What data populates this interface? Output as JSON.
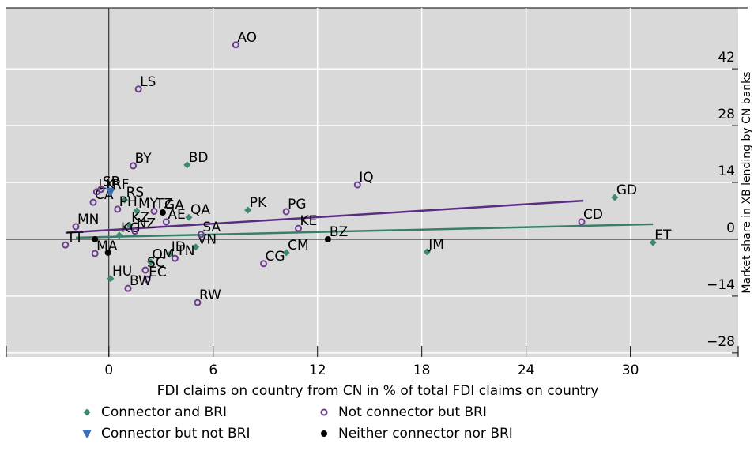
{
  "chart_data": {
    "type": "scatter",
    "xlabel": "FDI claims on country from CN in % of  total FDI claims on country",
    "ylabel": "Market share in XB lending by CN banks",
    "xlim": [
      -5.9,
      36.2
    ],
    "xticks": [
      0,
      6,
      12,
      18,
      24,
      30
    ],
    "ylim": [
      -29,
      57
    ],
    "yticks": [
      {
        "value": -28,
        "label": "−28"
      },
      {
        "value": -14,
        "label": "−14"
      },
      0,
      14,
      28,
      42
    ],
    "grid": true,
    "y_axis_side": "right",
    "legend": "bottom",
    "series": [
      {
        "name": "Connector and BRI",
        "color": "#3e8a6e",
        "marker": "diamond",
        "x": [
          4.5,
          29.1,
          8.0,
          31.3,
          18.3,
          10.2,
          4.6,
          5.0,
          3.5,
          2.4,
          0.1,
          0.9,
          1.6,
          1.2,
          0.6
        ],
        "y": [
          18.3,
          10.3,
          7.2,
          -0.8,
          -3.1,
          -3.3,
          5.4,
          -1.9,
          -3.7,
          -5.6,
          -9.7,
          9.7,
          7.0,
          3.5,
          1.0
        ],
        "labels": [
          "BD",
          "GD",
          "PK",
          "ET",
          "JM",
          "CM",
          "QA",
          "VN",
          "ID",
          "OM",
          "HU",
          "RS",
          "MY",
          "KZ",
          "KG"
        ]
      },
      {
        "name": "Not connector but BRI",
        "color": "#6a3d8f",
        "marker": "circle-open",
        "x": [
          7.3,
          1.7,
          1.4,
          14.3,
          10.2,
          27.2,
          10.9,
          8.9,
          5.1,
          3.3,
          5.3,
          3.8,
          2.1,
          2.2,
          1.1,
          -2.5,
          -1.9,
          -0.9,
          -0.7,
          -0.45,
          0.5,
          -0.8,
          1.5,
          2.6
        ],
        "y": [
          47.9,
          37.0,
          18.1,
          13.4,
          6.8,
          4.3,
          2.7,
          -6.0,
          -15.6,
          4.3,
          1.2,
          -4.7,
          -7.6,
          -9.9,
          -12.1,
          -1.4,
          3.1,
          9.1,
          11.7,
          12.3,
          7.4,
          -3.5,
          2.0,
          6.9
        ],
        "labels": [
          "AO",
          "LS",
          "BY",
          "IQ",
          "PG",
          "CD",
          "KE",
          "CG",
          "RW",
          "AE",
          "SA",
          "TN",
          "SC",
          "EC",
          "BW",
          "TT",
          "MN",
          "CA",
          "LK",
          "SR",
          "PH",
          "MA",
          "NZ",
          "TZ"
        ]
      },
      {
        "name": "Connector but not BRI",
        "color": "#3b6fb6",
        "marker": "triangle-down",
        "x": [
          0.1
        ],
        "y": [
          11.7
        ],
        "labels": [
          "RF"
        ]
      },
      {
        "name": "Neither connector nor BRI",
        "color": "#000000",
        "marker": "dot",
        "x": [
          3.1,
          12.6,
          -0.8,
          -0.05
        ],
        "y": [
          6.6,
          0.0,
          0.0,
          -3.3
        ],
        "labels": [
          "GA",
          "BZ",
          null,
          null
        ]
      }
    ],
    "trend_lines": [
      {
        "color": "#5b2d82",
        "x": [
          -2.5,
          27.3
        ],
        "y": [
          1.6,
          9.5
        ]
      },
      {
        "color": "#3a7d68",
        "x": [
          -1.9,
          31.3
        ],
        "y": [
          0.4,
          3.7
        ]
      }
    ]
  }
}
